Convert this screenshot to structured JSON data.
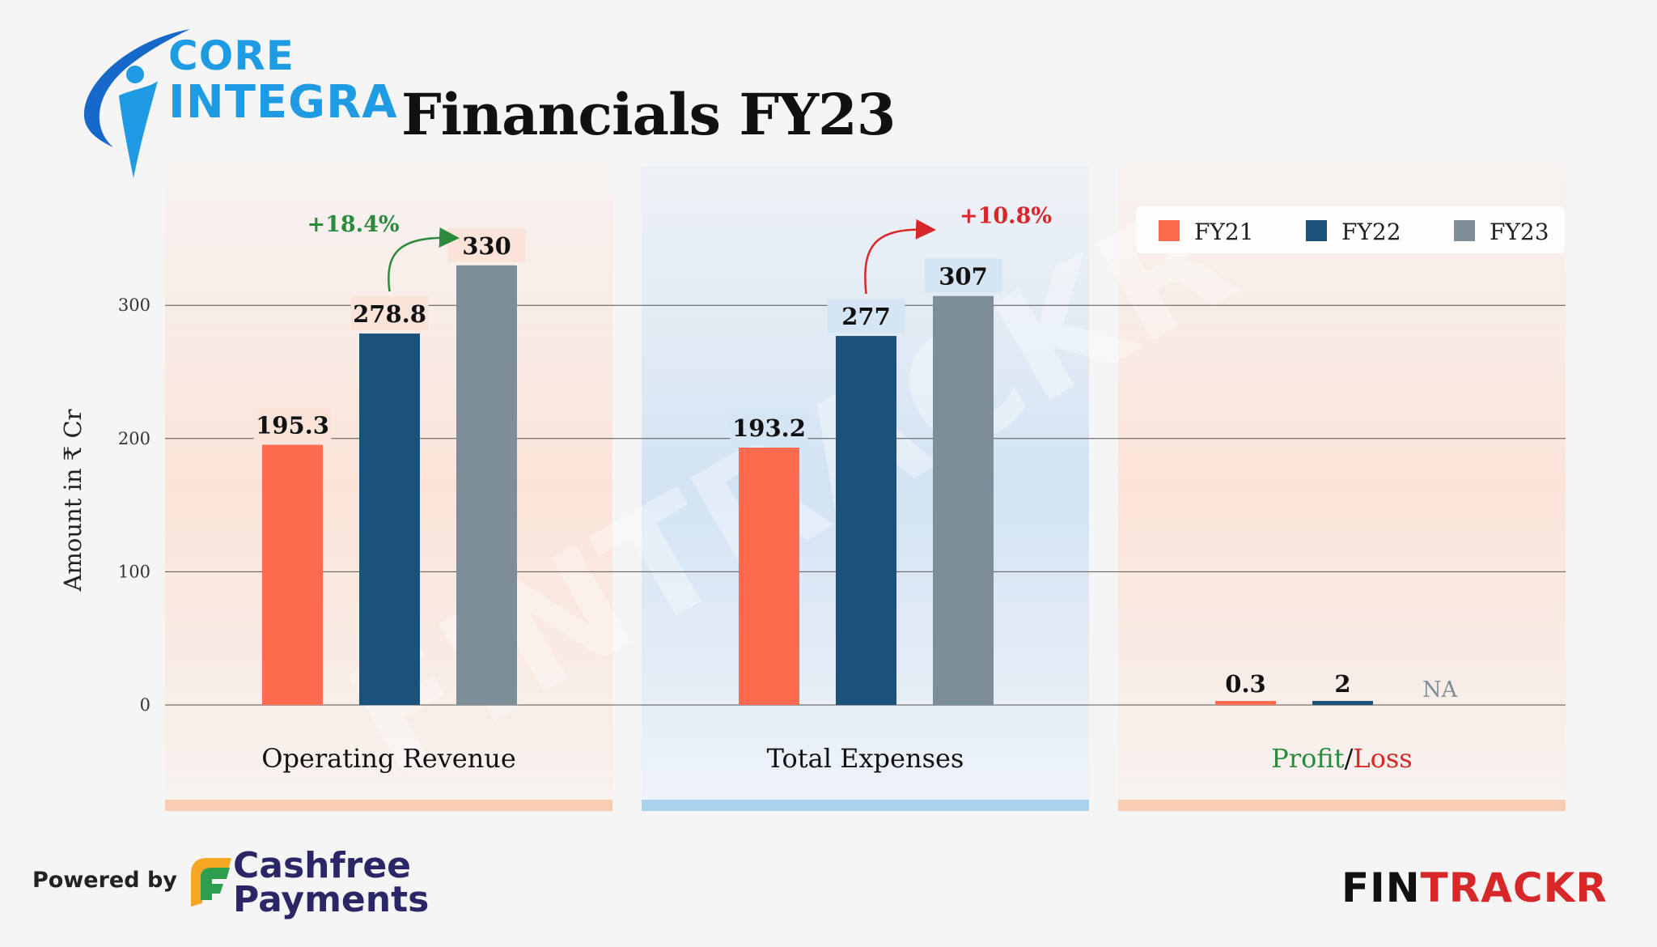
{
  "header": {
    "logo_line1": "CORE",
    "logo_line2": "INTEGRA",
    "title": "Financials FY23"
  },
  "footer": {
    "powered_by": "Powered by",
    "sponsor_line1": "Cashfree",
    "sponsor_line2": "Payments",
    "brand_part1": "FIN",
    "brand_part2": "TRACKR",
    "watermark": "FINTRACKR"
  },
  "colors": {
    "FY21": "#fe6b4f",
    "FY22": "#1a527c",
    "FY23": "#7e8e98",
    "growth_positive": "#2b8a3e",
    "growth_negative": "#d62828",
    "profit": "#2b8a3e",
    "loss": "#d62828"
  },
  "chart_data": {
    "type": "bar",
    "ylabel": "Amount in ₹ Cr",
    "ylim": [
      0,
      360
    ],
    "yticks": [
      0,
      100,
      200,
      300
    ],
    "grid": true,
    "legend_position": "top-right",
    "categories": [
      "Operating Revenue",
      "Total Expenses",
      "Profit/Loss"
    ],
    "category_label_parts": {
      "profit": "Profit",
      "separator": "/",
      "loss": "Loss"
    },
    "series": [
      {
        "name": "FY21",
        "values": [
          195.3,
          193.2,
          0.3
        ],
        "labels": [
          "195.3",
          "193.2",
          "0.3"
        ]
      },
      {
        "name": "FY22",
        "values": [
          278.8,
          277,
          2
        ],
        "labels": [
          "278.8",
          "277",
          "2"
        ]
      },
      {
        "name": "FY23",
        "values": [
          330,
          307,
          null
        ],
        "labels": [
          "330",
          "307",
          "NA"
        ]
      }
    ],
    "annotations": [
      {
        "category": "Operating Revenue",
        "text": "+18.4%",
        "sentiment": "positive"
      },
      {
        "category": "Total Expenses",
        "text": "+10.8%",
        "sentiment": "negative"
      }
    ]
  }
}
